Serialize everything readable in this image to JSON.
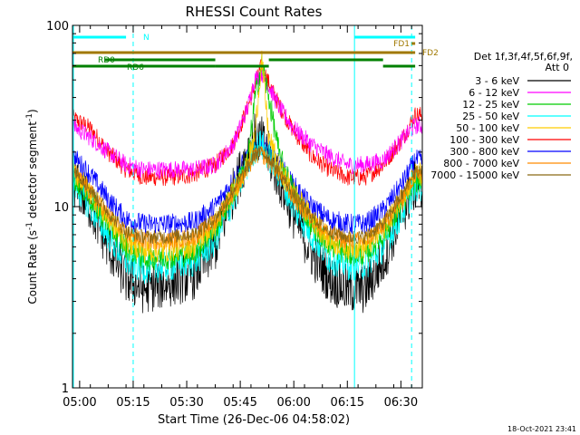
{
  "chart_data": {
    "type": "line",
    "title": "RHESSI Count Rates",
    "xlabel": "Start Time (26-Dec-06 04:58:02)",
    "ylabel_prefix": "Count Rate (s",
    "ylabel_sup1": "-1",
    "ylabel_mid": " detector segment",
    "ylabel_sup2": "-1",
    "ylabel_suffix": ")",
    "yscale": "log",
    "ylim": [
      1,
      100
    ],
    "xlim": [
      "04:58:00",
      "06:36:00"
    ],
    "x_ticks": [
      "05:00",
      "05:15",
      "05:30",
      "05:45",
      "06:00",
      "06:15",
      "06:30"
    ],
    "y_ticks": [
      "1",
      "10",
      "100"
    ],
    "legend": {
      "header_line1": "Det 1f,3f,4f,5f,6f,9f,",
      "header_line2": "Att 0",
      "placement": "right-outside"
    },
    "timestamp": "18-Oct-2021 23:41",
    "series": [
      {
        "name": "3 - 6 keV",
        "color": "#000000",
        "x": [
          "04:58",
          "05:03",
          "05:08",
          "05:13",
          "05:18",
          "05:25",
          "05:32",
          "05:38",
          "05:43",
          "05:47",
          "05:49",
          "05:51",
          "05:53",
          "05:56",
          "06:00",
          "06:05",
          "06:10",
          "06:15",
          "06:20",
          "06:25",
          "06:30",
          "06:34"
        ],
        "values": [
          14,
          10,
          6,
          4,
          3.5,
          3.8,
          4.2,
          6,
          12,
          20,
          24,
          23,
          19,
          14,
          9,
          5.5,
          4,
          3.5,
          3.5,
          5,
          9,
          13
        ]
      },
      {
        "name": "6 - 12 keV",
        "color": "#ff00ff",
        "x": [
          "04:58",
          "05:03",
          "05:08",
          "05:13",
          "05:18",
          "05:25",
          "05:32",
          "05:38",
          "05:43",
          "05:47",
          "05:49",
          "05:51",
          "05:53",
          "05:56",
          "06:00",
          "06:05",
          "06:10",
          "06:15",
          "06:20",
          "06:25",
          "06:30",
          "06:34"
        ],
        "values": [
          28,
          24,
          20,
          17,
          16,
          16,
          16,
          17,
          22,
          35,
          50,
          55,
          46,
          35,
          27,
          22,
          19,
          17,
          17,
          18,
          23,
          28
        ]
      },
      {
        "name": "12 - 25 keV",
        "color": "#00cc00",
        "x": [
          "04:58",
          "05:03",
          "05:08",
          "05:13",
          "05:18",
          "05:25",
          "05:32",
          "05:38",
          "05:43",
          "05:47",
          "05:49",
          "05:51",
          "05:53",
          "05:56",
          "06:00",
          "06:05",
          "06:10",
          "06:15",
          "06:20",
          "06:25",
          "06:30",
          "06:34"
        ],
        "values": [
          15,
          11,
          8,
          6,
          5.2,
          5.3,
          5.6,
          7.5,
          12,
          17,
          38,
          62,
          40,
          19,
          12,
          8,
          6.2,
          5.5,
          5.5,
          7,
          10,
          14
        ]
      },
      {
        "name": "25 - 50 keV",
        "color": "#00ffff",
        "x": [
          "04:58",
          "05:03",
          "05:08",
          "05:13",
          "05:18",
          "05:25",
          "05:32",
          "05:38",
          "05:43",
          "05:47",
          "05:49",
          "05:51",
          "05:53",
          "05:56",
          "06:00",
          "06:05",
          "06:10",
          "06:15",
          "06:20",
          "06:25",
          "06:30",
          "06:34"
        ],
        "values": [
          14,
          10,
          7,
          5,
          4.6,
          4.7,
          5,
          6.5,
          11,
          17,
          21,
          22,
          19,
          15,
          10,
          7,
          5.2,
          4.8,
          4.8,
          6,
          9,
          13
        ]
      },
      {
        "name": "50 - 100 keV",
        "color": "#ffcc00",
        "x": [
          "04:58",
          "05:03",
          "05:08",
          "05:13",
          "05:18",
          "05:25",
          "05:32",
          "05:38",
          "05:43",
          "05:47",
          "05:49",
          "05:51",
          "05:53",
          "05:56",
          "06:00",
          "06:05",
          "06:10",
          "06:15",
          "06:20",
          "06:25",
          "06:30",
          "06:34"
        ],
        "values": [
          16,
          12,
          8.5,
          6.5,
          5.7,
          5.8,
          6.1,
          8,
          12,
          17,
          24,
          66,
          24,
          16,
          12,
          8.5,
          6.5,
          6,
          6,
          7.5,
          11,
          15
        ]
      },
      {
        "name": "100 - 300 keV",
        "color": "#ff0000",
        "x": [
          "04:58",
          "05:03",
          "05:08",
          "05:13",
          "05:18",
          "05:25",
          "05:32",
          "05:38",
          "05:43",
          "05:47",
          "05:49",
          "05:51",
          "05:53",
          "05:56",
          "06:00",
          "06:05",
          "06:10",
          "06:15",
          "06:20",
          "06:25",
          "06:30",
          "06:34"
        ],
        "values": [
          31,
          27,
          20,
          16,
          14.5,
          14.5,
          15,
          17,
          22,
          35,
          46,
          60,
          48,
          36,
          26,
          19,
          16,
          14.5,
          14.5,
          17,
          23,
          32
        ]
      },
      {
        "name": "300 - 800 keV",
        "color": "#0000ff",
        "x": [
          "04:58",
          "05:03",
          "05:08",
          "05:13",
          "05:18",
          "05:25",
          "05:32",
          "05:38",
          "05:43",
          "05:47",
          "05:49",
          "05:51",
          "05:53",
          "05:56",
          "06:00",
          "06:05",
          "06:10",
          "06:15",
          "06:20",
          "06:25",
          "06:30",
          "06:34"
        ],
        "values": [
          19,
          15,
          11,
          8.5,
          8,
          8,
          8.2,
          10,
          14,
          19,
          22,
          23,
          21,
          17,
          13,
          10,
          8.5,
          8,
          8,
          9.5,
          13,
          18
        ]
      },
      {
        "name": "800 - 7000 keV",
        "color": "#ff8c00",
        "x": [
          "04:58",
          "05:03",
          "05:08",
          "05:13",
          "05:18",
          "05:25",
          "05:32",
          "05:38",
          "05:43",
          "05:47",
          "05:49",
          "05:51",
          "05:53",
          "05:56",
          "06:00",
          "06:05",
          "06:10",
          "06:15",
          "06:20",
          "06:25",
          "06:30",
          "06:34"
        ],
        "values": [
          16,
          12,
          9,
          7,
          6.5,
          6.5,
          6.8,
          8.3,
          12,
          16,
          19,
          19.5,
          18,
          15,
          11,
          8.5,
          7,
          6.5,
          6.5,
          7.8,
          11,
          15
        ]
      },
      {
        "name": "7000 - 15000 keV",
        "color": "#8b6914",
        "x": [
          "04:58",
          "05:03",
          "05:08",
          "05:13",
          "05:18",
          "05:25",
          "05:32",
          "05:38",
          "05:43",
          "05:47",
          "05:49",
          "05:51",
          "05:53",
          "05:56",
          "06:00",
          "06:05",
          "06:10",
          "06:15",
          "06:20",
          "06:25",
          "06:30",
          "06:34"
        ],
        "values": [
          16.5,
          12.5,
          9.3,
          7.3,
          6.8,
          6.8,
          7.1,
          8.6,
          12.3,
          16.5,
          19.5,
          20,
          18.5,
          15.5,
          11.5,
          8.8,
          7.3,
          6.8,
          6.8,
          8.1,
          11.3,
          15.5
        ]
      }
    ],
    "flags": [
      {
        "name": "N",
        "color": "#00ffff",
        "segments": [
          [
            "04:58",
            "05:13"
          ],
          [
            "06:17",
            "06:34"
          ]
        ]
      },
      {
        "name": "FD1",
        "color": "#a07800",
        "segments": [
          [
            "06:33",
            "06:34"
          ]
        ]
      },
      {
        "name": "FD2",
        "color": "#a07800",
        "segments": [
          [
            "04:58",
            "06:34"
          ]
        ]
      },
      {
        "name": "RD0",
        "color": "#008000",
        "segments": [
          [
            "05:07",
            "05:38"
          ],
          [
            "05:53",
            "06:25"
          ]
        ]
      },
      {
        "name": "RD6",
        "color": "#008000",
        "segments": [
          [
            "04:58",
            "05:38"
          ],
          [
            "05:38",
            "05:53"
          ],
          [
            "06:25",
            "06:34"
          ]
        ]
      }
    ],
    "vertical_markers": [
      {
        "x": "04:58",
        "style": "solid",
        "color": "#00ffff"
      },
      {
        "x": "05:15",
        "style": "dashed",
        "color": "#00ffff"
      },
      {
        "x": "06:17",
        "style": "solid",
        "color": "#00ffff"
      },
      {
        "x": "06:33",
        "style": "dashed",
        "color": "#00ffff"
      }
    ]
  }
}
